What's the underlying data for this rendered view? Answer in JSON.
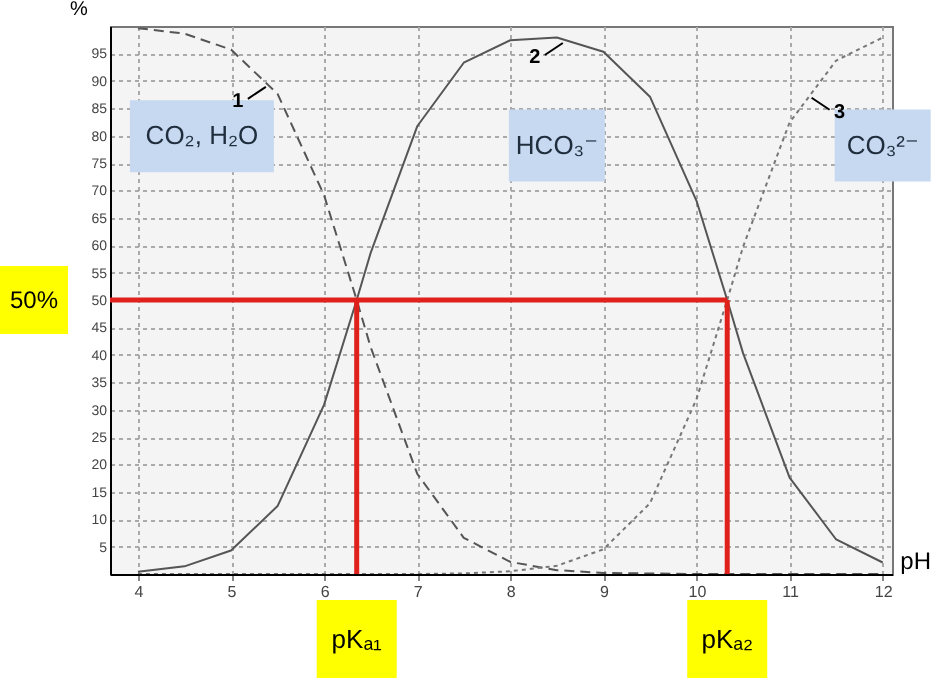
{
  "chart_data": {
    "type": "line",
    "xlabel": "pH",
    "ylabel": "%",
    "x": [
      4,
      4.5,
      5,
      5.5,
      6,
      6.35,
      6.5,
      7,
      7.5,
      8,
      8.5,
      9,
      9.5,
      10,
      10.33,
      10.5,
      11,
      11.5,
      12
    ],
    "series": [
      {
        "name": "CO₂, H₂O",
        "color": "#555555",
        "line_style": "dashed",
        "values": [
          99.6,
          98.6,
          95.7,
          87.6,
          69.1,
          50,
          41.4,
          18.3,
          6.6,
          2.2,
          0.7,
          0.2,
          0.1,
          0,
          0,
          0,
          0,
          0,
          0
        ]
      },
      {
        "name": "HCO₃⁻",
        "color": "#555555",
        "line_style": "solid",
        "values": [
          0.4,
          1.4,
          4.3,
          12.4,
          30.9,
          50,
          58.6,
          81.7,
          93.3,
          97.4,
          97.9,
          95.3,
          87.1,
          68.1,
          50,
          40.3,
          17.6,
          6.3,
          2.1
        ]
      },
      {
        "name": "CO₃²⁻",
        "color": "#777777",
        "line_style": "dotted",
        "values": [
          0,
          0,
          0,
          0,
          0,
          0,
          0,
          0,
          0.1,
          0.5,
          1.5,
          4.5,
          12.9,
          31.9,
          50,
          59.7,
          82.4,
          93.7,
          97.9
        ]
      }
    ],
    "xlim": [
      3.7,
      12.1
    ],
    "ylim": [
      0,
      100
    ],
    "xticks": [
      4,
      5,
      6,
      7,
      8,
      9,
      10,
      11,
      12
    ],
    "yticks": [
      5,
      10,
      15,
      20,
      25,
      30,
      35,
      40,
      45,
      50,
      55,
      60,
      65,
      70,
      75,
      80,
      85,
      90,
      95
    ],
    "grid": true,
    "ref_lines": [
      {
        "axis": "y",
        "value": 50,
        "label": "50%",
        "color": "#e0201b"
      },
      {
        "axis": "x",
        "value": 6.35,
        "label": "pKₐ₁",
        "color": "#e0201b"
      },
      {
        "axis": "x",
        "value": 10.33,
        "label": "pKₐ₂",
        "color": "#e0201b"
      }
    ],
    "annotations": [
      {
        "text": "1",
        "x": 5.46,
        "y": 90
      },
      {
        "text": "2",
        "x": 8.65,
        "y": 98
      },
      {
        "text": "3",
        "x": 11.15,
        "y": 88
      }
    ]
  }
}
